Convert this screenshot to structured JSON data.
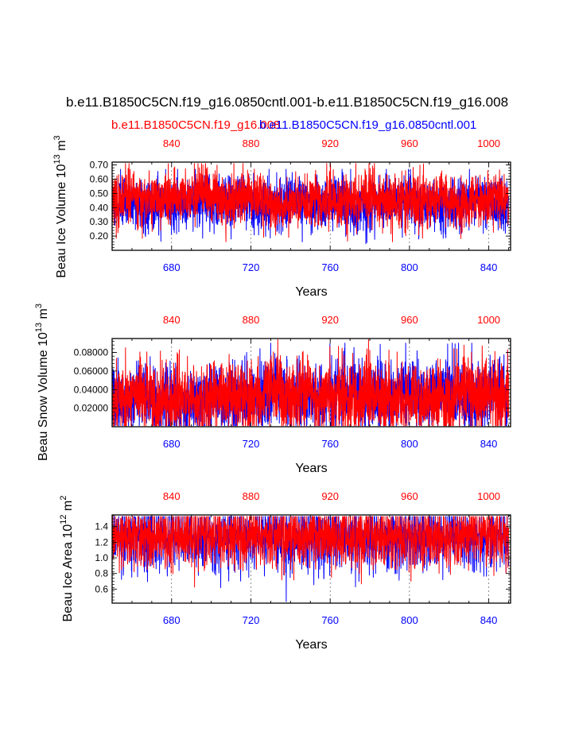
{
  "title": "b.e11.B1850C5CN.f19_g16.0850cntl.001-b.e11.B1850C5CN.f19_g16.008",
  "legend": {
    "red_case": "b.e11.B1850C5CN.f19_g16.008",
    "blue_case": "b.e11.B1850C5CN.f19_g16.0850cntl.001"
  },
  "colors": {
    "red": "#ff0000",
    "blue": "#0000ff",
    "axis": "#000000",
    "grid": "#444444"
  },
  "chart_data": [
    {
      "type": "line",
      "ylabel_main": "Beau Ice Volume 10",
      "ylabel_exp": "13",
      "ylabel_tail": " m",
      "ylabel_unit_exp": "3",
      "xlabel": "Years",
      "ylim": [
        0.1,
        0.72
      ],
      "ytick_values": [
        0.2,
        0.3,
        0.4,
        0.5,
        0.6,
        0.7
      ],
      "ytick_labels": [
        "0.20",
        "0.30",
        "0.40",
        "0.50",
        "0.60",
        "0.70"
      ],
      "bottom_axis": {
        "range": [
          650,
          851
        ],
        "ticks": [
          680,
          720,
          760,
          800,
          840
        ]
      },
      "top_axis": {
        "range": [
          810,
          1011
        ],
        "ticks": [
          840,
          880,
          920,
          960,
          1000
        ]
      },
      "series": [
        {
          "name": "b.e11.B1850C5CN.f19_g16.0850cntl.001",
          "color": "blue",
          "mean": 0.43,
          "spread": 0.1,
          "min": 0.11,
          "max": 0.67,
          "seed": 11
        },
        {
          "name": "b.e11.B1850C5CN.f19_g16.008",
          "color": "red",
          "mean": 0.45,
          "spread": 0.1,
          "min": 0.16,
          "max": 0.71,
          "seed": 23
        }
      ]
    },
    {
      "type": "line",
      "ylabel_main": "Beau Snow Volume 10",
      "ylabel_exp": "13",
      "ylabel_tail": " m",
      "ylabel_unit_exp": "3",
      "xlabel": "Years",
      "ylim": [
        0.0,
        0.095
      ],
      "ytick_values": [
        0.02,
        0.04,
        0.06,
        0.08
      ],
      "ytick_labels": [
        "0.02000",
        "0.04000",
        "0.06000",
        "0.08000"
      ],
      "bottom_axis": {
        "range": [
          650,
          851
        ],
        "ticks": [
          680,
          720,
          760,
          800,
          840
        ]
      },
      "top_axis": {
        "range": [
          810,
          1011
        ],
        "ticks": [
          840,
          880,
          920,
          960,
          1000
        ]
      },
      "series": [
        {
          "name": "b.e11.B1850C5CN.f19_g16.0850cntl.001",
          "color": "blue",
          "mean": 0.03,
          "spread": 0.02,
          "min": 0.001,
          "max": 0.09,
          "seed": 37
        },
        {
          "name": "b.e11.B1850C5CN.f19_g16.008",
          "color": "red",
          "mean": 0.034,
          "spread": 0.022,
          "min": 0.001,
          "max": 0.094,
          "seed": 53
        }
      ]
    },
    {
      "type": "line",
      "ylabel_main": "Beau Ice Area 10",
      "ylabel_exp": "12",
      "ylabel_tail": " m",
      "ylabel_unit_exp": "2",
      "xlabel": "Years",
      "ylim": [
        0.42,
        1.55
      ],
      "ytick_values": [
        0.6,
        0.8,
        1.0,
        1.2,
        1.4
      ],
      "ytick_labels": [
        "0.6",
        "0.8",
        "1.0",
        "1.2",
        "1.4"
      ],
      "bottom_axis": {
        "range": [
          650,
          851
        ],
        "ticks": [
          680,
          720,
          760,
          800,
          840
        ]
      },
      "top_axis": {
        "range": [
          810,
          1011
        ],
        "ticks": [
          840,
          880,
          920,
          960,
          1000
        ]
      },
      "series": [
        {
          "name": "b.e11.B1850C5CN.f19_g16.0850cntl.001",
          "color": "blue",
          "mean": 1.2,
          "spread": 0.3,
          "min": 0.44,
          "max": 1.53,
          "seed": 71
        },
        {
          "name": "b.e11.B1850C5CN.f19_g16.008",
          "color": "red",
          "mean": 1.22,
          "spread": 0.28,
          "min": 0.5,
          "max": 1.53,
          "seed": 89
        }
      ]
    }
  ]
}
